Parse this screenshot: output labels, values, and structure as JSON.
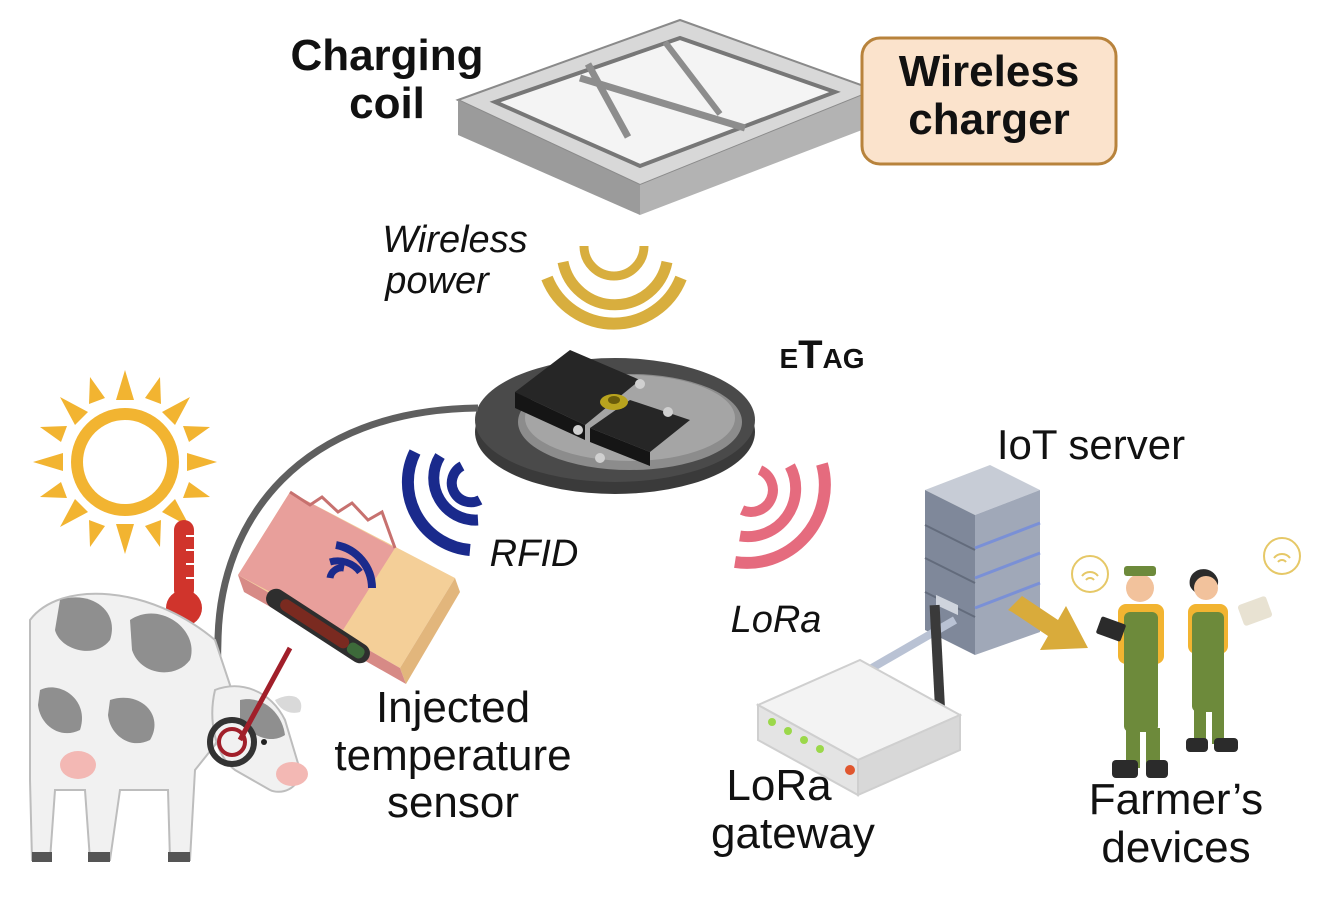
{
  "labels": {
    "charging_coil": [
      "Charging",
      "coil"
    ],
    "wireless_charger": [
      "Wireless",
      "charger"
    ],
    "wireless_power": [
      "Wireless",
      "power"
    ],
    "etag": "eTag",
    "rfid": "RFID",
    "lora": "LoRa",
    "iot_server": "IoT server",
    "injected_sensor": [
      "Injected",
      "temperature",
      "sensor"
    ],
    "lora_gateway": [
      "LoRa",
      "gateway"
    ],
    "farmers_devices": [
      "Farmer’s",
      "devices"
    ]
  },
  "colors": {
    "wireless_power_waves": "#d8ae3e",
    "rfid_waves": "#1a2a8c",
    "lora_waves": "#e56b7e",
    "charger_box_fill": "#fbe3cc",
    "charger_box_border": "#b8833c",
    "cable": "#5f5f5f",
    "sun": "#f2b431",
    "thermometer": "#d0342c",
    "server_body": "#9aa3b2",
    "farmer_clothes": "#6d8a3b",
    "arrow": "#d9ab3b"
  },
  "icons": [
    "sun-icon",
    "thermometer-icon",
    "cow-icon",
    "server-icon",
    "router-icon",
    "farmer-icon",
    "charging-coil-icon",
    "etag-device-icon"
  ]
}
